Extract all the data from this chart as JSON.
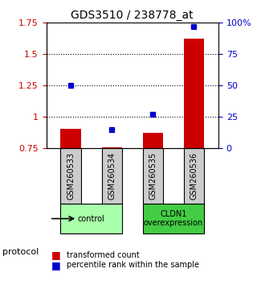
{
  "title": "GDS3510 / 238778_at",
  "samples": [
    "GSM260533",
    "GSM260534",
    "GSM260535",
    "GSM260536"
  ],
  "bar_values": [
    0.905,
    0.758,
    0.875,
    1.625
  ],
  "percentile_values": [
    50,
    15,
    27,
    97
  ],
  "left_ylim": [
    0.75,
    1.75
  ],
  "right_ylim": [
    0,
    100
  ],
  "left_yticks": [
    0.75,
    1.0,
    1.25,
    1.5,
    1.75
  ],
  "left_yticklabels": [
    "0.75",
    "1",
    "1.25",
    "1.5",
    "1.75"
  ],
  "right_yticks": [
    0,
    25,
    50,
    75,
    100
  ],
  "right_yticklabels": [
    "0",
    "25",
    "50",
    "75",
    "100%"
  ],
  "hlines": [
    1.0,
    1.25,
    1.5
  ],
  "bar_color": "#cc0000",
  "dot_color": "#0000cc",
  "bar_width": 0.5,
  "groups": [
    {
      "label": "control",
      "samples": [
        0,
        1
      ],
      "color": "#aaffaa"
    },
    {
      "label": "CLDN1\noverexpression",
      "samples": [
        2,
        3
      ],
      "color": "#44cc44"
    }
  ],
  "protocol_label": "protocol",
  "legend_bar_label": "transformed count",
  "legend_dot_label": "percentile rank within the sample",
  "bg_color": "#ffffff",
  "sample_box_color": "#cccccc",
  "left_tick_color": "#cc0000",
  "right_tick_color": "#0000cc"
}
